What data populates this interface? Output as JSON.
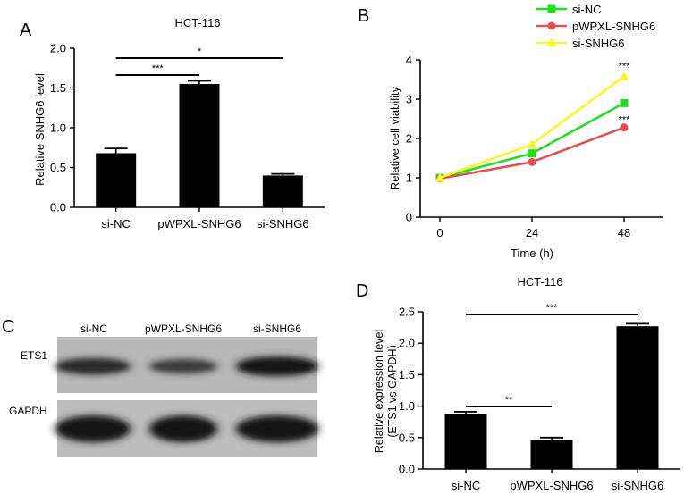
{
  "panels": {
    "A": "A",
    "B": "B",
    "C": "C",
    "D": "D"
  },
  "chart_data": [
    {
      "panel": "A",
      "type": "bar",
      "title": "HCT-116",
      "ylabel": "Relative SNHG6 level",
      "categories": [
        "si-NC",
        "pWPXL-SNHG6",
        "si-SNHG6"
      ],
      "values": [
        0.68,
        1.55,
        0.4
      ],
      "errors": [
        0.06,
        0.04,
        0.02
      ],
      "ylim": [
        0,
        2.0
      ],
      "yticks": [
        "0.0",
        "0.5",
        "1.0",
        "1.5",
        "2.0"
      ],
      "significance": [
        {
          "from": 0,
          "to": 1,
          "label": "***"
        },
        {
          "from": 0,
          "to": 2,
          "label": "*"
        }
      ],
      "color": "#000000"
    },
    {
      "panel": "B",
      "type": "line",
      "xlabel": "Time (h)",
      "ylabel": "Relative cell viability",
      "x": [
        0,
        24,
        48
      ],
      "xticks": [
        "0",
        "24",
        "48"
      ],
      "ylim": [
        0,
        4
      ],
      "yticks": [
        "0",
        "1",
        "2",
        "3",
        "4"
      ],
      "series": [
        {
          "name": "si-NC",
          "values": [
            1.0,
            1.62,
            2.9
          ],
          "color": "#22dd22",
          "marker": "square"
        },
        {
          "name": "pWPXL-SNHG6",
          "values": [
            0.98,
            1.4,
            2.28
          ],
          "color": "#e05050",
          "marker": "circle"
        },
        {
          "name": "si-SNHG6",
          "values": [
            1.0,
            1.85,
            3.58
          ],
          "color": "#f5f530",
          "marker": "triangle"
        }
      ],
      "annotations": [
        "***",
        "***"
      ],
      "legend": "top-right"
    },
    {
      "panel": "D",
      "type": "bar",
      "title": "HCT-116",
      "ylabel_line1": "Relative expression level",
      "ylabel_line2": "(ETS1 vs GAPDH)",
      "categories": [
        "si-NC",
        "pWPXL-SNHG6",
        "si-SNHG6"
      ],
      "values": [
        0.87,
        0.46,
        2.27
      ],
      "errors": [
        0.04,
        0.04,
        0.04
      ],
      "ylim": [
        0,
        2.5
      ],
      "yticks": [
        "0.0",
        "0.5",
        "1.0",
        "1.5",
        "2.0",
        "2.5"
      ],
      "significance": [
        {
          "from": 0,
          "to": 1,
          "label": "**"
        },
        {
          "from": 0,
          "to": 2,
          "label": "***"
        }
      ],
      "color": "#000000"
    }
  ],
  "blot": {
    "lanes": [
      "si-NC",
      "pWPXL-SNHG6",
      "si-SNHG6"
    ],
    "rows": [
      {
        "label": "ETS1",
        "intensity": [
          0.7,
          0.45,
          1.0
        ]
      },
      {
        "label": "GAPDH",
        "intensity": [
          0.95,
          1.0,
          0.97
        ]
      }
    ]
  }
}
